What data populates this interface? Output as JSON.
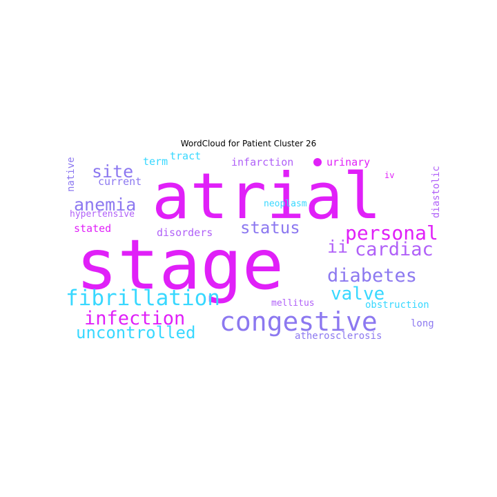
{
  "chart_data": {
    "type": "wordcloud",
    "title": "WordCloud for Patient Cluster 26",
    "palette": {
      "magenta": "#e020f8",
      "cyan": "#38d8ff",
      "violet": "#8c78f0",
      "purple": "#b060f8"
    },
    "words": [
      {
        "text": "stage",
        "color": "#e020f8"
      },
      {
        "text": "atrial",
        "color": "#e020f8"
      },
      {
        "text": "congestive",
        "color": "#8c78f0"
      },
      {
        "text": "fibrillation",
        "color": "#38d8ff"
      },
      {
        "text": "infection",
        "color": "#e020f8"
      },
      {
        "text": "uncontrolled",
        "color": "#38d8ff"
      },
      {
        "text": "personal",
        "color": "#e020f8"
      },
      {
        "text": "diabetes",
        "color": "#8c78f0"
      },
      {
        "text": "cardiac",
        "color": "#b060f8"
      },
      {
        "text": "valve",
        "color": "#38d8ff"
      },
      {
        "text": "status",
        "color": "#8c78f0"
      },
      {
        "text": "anemia",
        "color": "#8c78f0"
      },
      {
        "text": "site",
        "color": "#8c78f0"
      },
      {
        "text": "ii",
        "color": "#b060f8"
      },
      {
        "text": "urinary",
        "color": "#e020f8"
      },
      {
        "text": "infarction",
        "color": "#b060f8"
      },
      {
        "text": "disorders",
        "color": "#b060f8"
      },
      {
        "text": "atherosclerosis",
        "color": "#8c78f0"
      },
      {
        "text": "obstruction",
        "color": "#38d8ff"
      },
      {
        "text": "mellitus",
        "color": "#b060f8"
      },
      {
        "text": "long",
        "color": "#8c78f0"
      },
      {
        "text": "neoplasm",
        "color": "#38d8ff"
      },
      {
        "text": "current",
        "color": "#8c78f0"
      },
      {
        "text": "hypertensive",
        "color": "#b060f8"
      },
      {
        "text": "stated",
        "color": "#e020f8"
      },
      {
        "text": "tract",
        "color": "#38d8ff"
      },
      {
        "text": "term",
        "color": "#38d8ff"
      },
      {
        "text": "native",
        "color": "#8c78f0"
      },
      {
        "text": "diastolic",
        "color": "#b060f8"
      },
      {
        "text": "iv",
        "color": "#e020f8"
      },
      {
        "text": "dot",
        "color": "#e020f8"
      }
    ]
  }
}
